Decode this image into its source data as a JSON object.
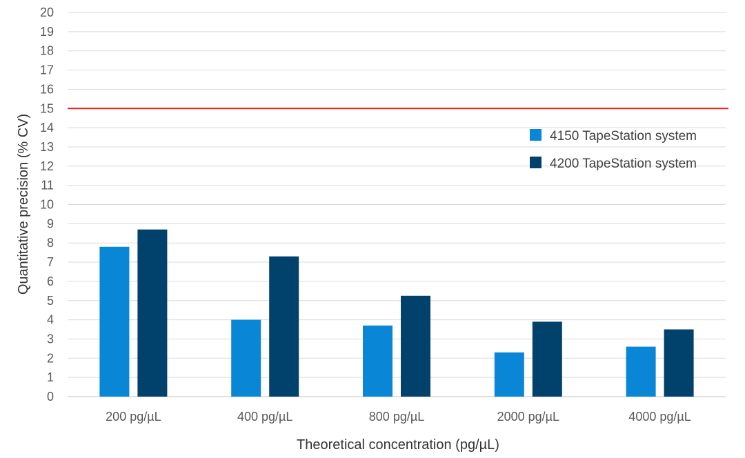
{
  "chart_data": {
    "type": "bar",
    "title": "",
    "xlabel": "Theoretical concentration (pg/µL)",
    "ylabel": "Quantitative precision (% CV)",
    "ylim": [
      0,
      20
    ],
    "yticks": [
      0,
      1,
      2,
      3,
      4,
      5,
      6,
      7,
      8,
      9,
      10,
      11,
      12,
      13,
      14,
      15,
      16,
      17,
      18,
      19,
      20
    ],
    "categories": [
      "200 pg/µL",
      "400 pg/µL",
      "800 pg/µL",
      "2000 pg/µL",
      "4000 pg/µL"
    ],
    "series": [
      {
        "name": "4150 TapeStation system",
        "color": "#0a86d6",
        "values": [
          7.8,
          4.0,
          3.7,
          2.3,
          2.6
        ]
      },
      {
        "name": "4200 TapeStation system",
        "color": "#00426b",
        "values": [
          8.7,
          7.3,
          5.25,
          3.9,
          3.5
        ]
      }
    ],
    "reference_line": {
      "value": 15,
      "color": "#e0201f"
    },
    "grid": true,
    "legend_position": "right"
  }
}
